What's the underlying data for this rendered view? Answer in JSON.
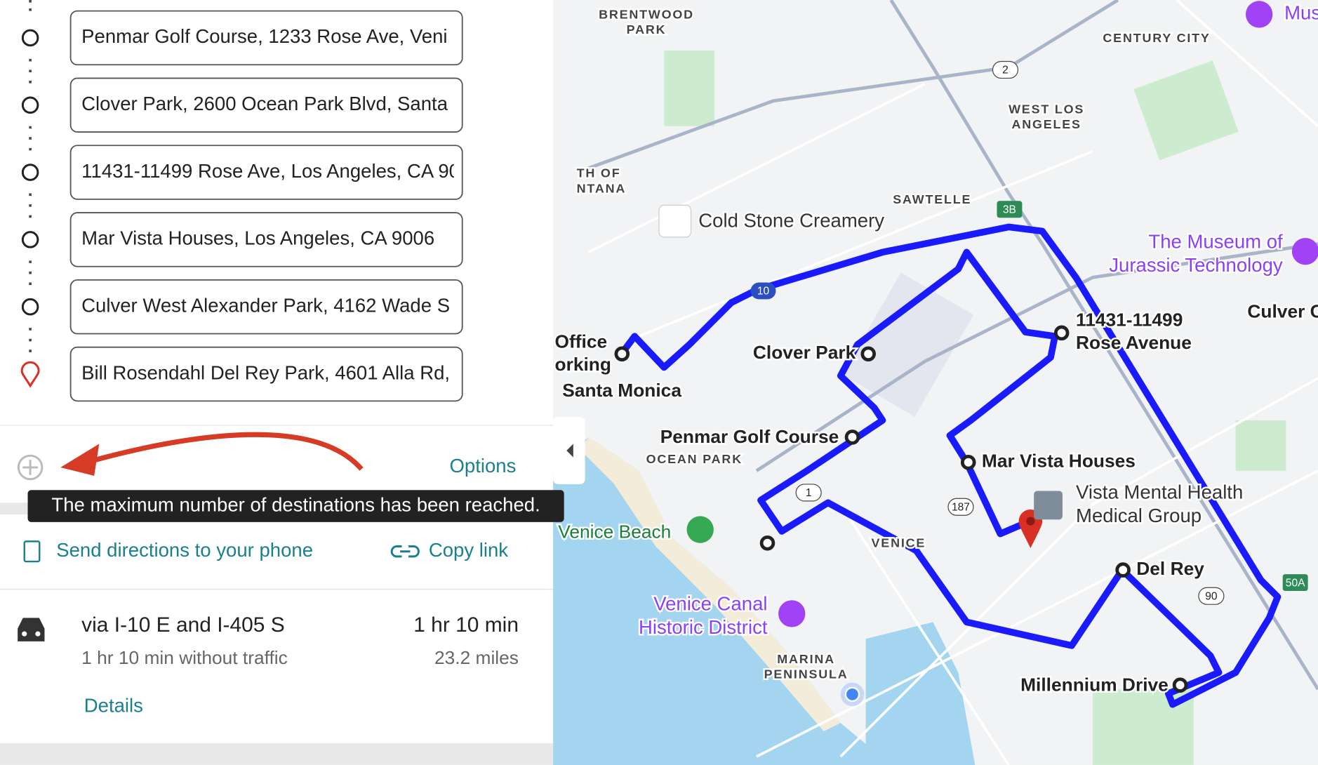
{
  "waypoints": [
    "Penmar Golf Course, 1233 Rose Ave, Veni",
    "Clover Park, 2600 Ocean Park Blvd, Santa",
    "11431-11499 Rose Ave, Los Angeles, CA 90",
    "Mar Vista Houses, Los Angeles, CA 9006",
    "Culver West Alexander Park, 4162 Wade S",
    "Bill Rosendahl Del Rey Park, 4601 Alla Rd,"
  ],
  "options": "Options",
  "tooltip": "The maximum number of destinations has been reached.",
  "send_directions": "Send directions to your phone",
  "copy_link": "Copy link",
  "route": {
    "via": "via I-10 E and I-405 S",
    "duration": "1 hr 10 min",
    "without_traffic": "1 hr 10 min without traffic",
    "distance": "23.2 miles",
    "details": "Details"
  },
  "map_labels": [
    {
      "lines": [
        "BRENTWOOD",
        "PARK"
      ],
      "kind": "area"
    },
    {
      "lines": [
        "CENTURY CITY"
      ],
      "kind": "area"
    },
    {
      "lines": [
        "WEST LOS",
        "ANGELES"
      ],
      "kind": "area"
    },
    {
      "lines": [
        "TH OF",
        "NTANA"
      ],
      "kind": "area"
    },
    {
      "lines": [
        "SAWTELLE"
      ],
      "kind": "area"
    },
    {
      "lines": [
        "Cold Stone Creamery"
      ],
      "kind": "poi"
    },
    {
      "lines": [
        "The Museum of",
        "Jurassic Technology"
      ],
      "kind": "purple"
    },
    {
      "lines": [
        "Mus"
      ],
      "kind": "purple"
    },
    {
      "lines": [
        "11431-11499",
        "Rose Avenue"
      ],
      "kind": "stop"
    },
    {
      "lines": [
        "Culver C"
      ],
      "kind": "stop"
    },
    {
      "lines": [
        "Office",
        "orking"
      ],
      "kind": "stop"
    },
    {
      "lines": [
        "Santa Monica"
      ],
      "kind": "stop"
    },
    {
      "lines": [
        "Clover Park"
      ],
      "kind": "stop"
    },
    {
      "lines": [
        "Penmar Golf Course"
      ],
      "kind": "stop"
    },
    {
      "lines": [
        "OCEAN PARK"
      ],
      "kind": "area"
    },
    {
      "lines": [
        "Mar Vista Houses"
      ],
      "kind": "stop"
    },
    {
      "lines": [
        "Vista Mental Health",
        "Medical Group"
      ],
      "kind": "poi"
    },
    {
      "lines": [
        "Venice Beach"
      ],
      "kind": "green"
    },
    {
      "lines": [
        "VENICE"
      ],
      "kind": "area"
    },
    {
      "lines": [
        "Del Rey"
      ],
      "kind": "stop"
    },
    {
      "lines": [
        "Venice Canal",
        "Historic District"
      ],
      "kind": "purple"
    },
    {
      "lines": [
        "MARINA",
        "PENINSULA"
      ],
      "kind": "area"
    },
    {
      "lines": [
        "Millennium Drive"
      ],
      "kind": "stop"
    }
  ],
  "shields": [
    "2",
    "3B",
    "10",
    "1",
    "187",
    "90",
    "50A"
  ]
}
